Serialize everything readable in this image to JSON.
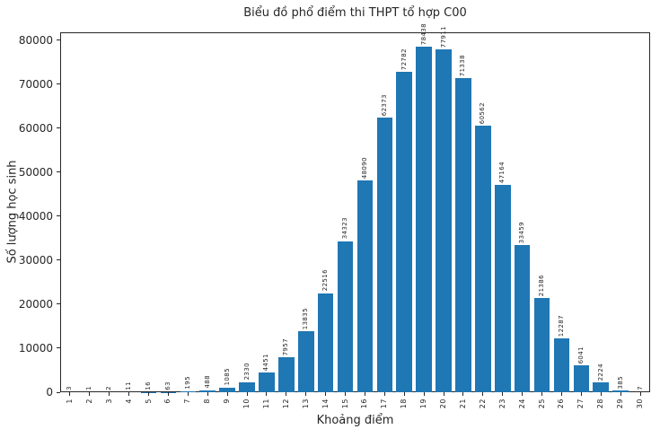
{
  "title": "Biểu đồ phổ điểm thi THPT tổ hợp C00",
  "chart_data": {
    "type": "bar",
    "title": "Biểu đồ phổ điểm thi THPT tổ hợp C00",
    "xlabel": "Khoảng điểm",
    "ylabel": "Số lượng học sinh",
    "categories": [
      1,
      2,
      3,
      4,
      5,
      6,
      7,
      8,
      9,
      10,
      11,
      12,
      13,
      14,
      15,
      16,
      17,
      18,
      19,
      20,
      21,
      22,
      23,
      24,
      25,
      26,
      27,
      28,
      29,
      30
    ],
    "values": [
      3,
      1,
      2,
      11,
      16,
      63,
      195,
      488,
      1085,
      2330,
      4451,
      7957,
      13835,
      22516,
      34323,
      48090,
      62373,
      72782,
      78438,
      77911,
      71338,
      60562,
      47164,
      33459,
      21386,
      12287,
      6041,
      2224,
      385,
      7
    ],
    "yticks": [
      0,
      10000,
      20000,
      30000,
      40000,
      50000,
      60000,
      70000,
      80000
    ],
    "ylim": [
      0,
      81800
    ],
    "bar_color": "#1f77b4",
    "grid": false,
    "legend": "none",
    "value_labels": true,
    "x_tick_rotation": 90,
    "value_label_rotation": 90
  }
}
